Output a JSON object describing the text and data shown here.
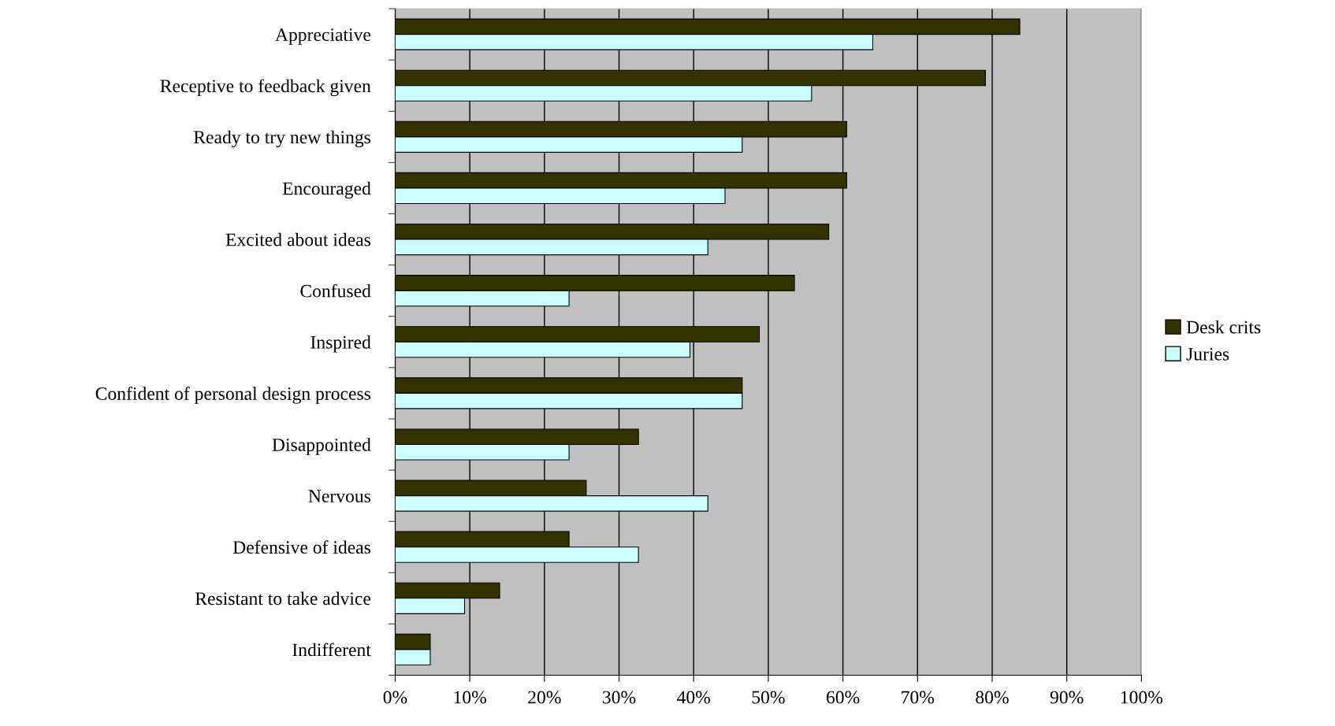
{
  "chart_data": {
    "type": "bar",
    "orientation": "horizontal",
    "categories": [
      "Appreciative",
      "Receptive to feedback given",
      "Ready to try new things",
      "Encouraged",
      "Excited about ideas",
      "Confused",
      "Inspired",
      "Confident of personal design process",
      "Disappointed",
      "Nervous",
      "Defensive of ideas",
      "Resistant to take advice",
      "Indifferent"
    ],
    "series": [
      {
        "name": "Desk crits",
        "color": "#333300",
        "values": [
          83.7,
          79.1,
          60.5,
          60.5,
          58.1,
          53.5,
          48.8,
          46.5,
          32.6,
          25.6,
          23.3,
          14.0,
          4.7
        ]
      },
      {
        "name": "Juries",
        "color": "#ccffff",
        "values": [
          64.0,
          55.8,
          46.5,
          44.2,
          41.9,
          23.3,
          39.5,
          46.5,
          23.3,
          41.9,
          32.6,
          9.3,
          4.7
        ]
      }
    ],
    "xlim": [
      0,
      100
    ],
    "xticks": [
      {
        "value": 0,
        "label": "0%"
      },
      {
        "value": 10,
        "label": "10%"
      },
      {
        "value": 20,
        "label": "20%"
      },
      {
        "value": 30,
        "label": "30%"
      },
      {
        "value": 40,
        "label": "40%"
      },
      {
        "value": 50,
        "label": "50%"
      },
      {
        "value": 60,
        "label": "60%"
      },
      {
        "value": 70,
        "label": "70%"
      },
      {
        "value": 80,
        "label": "80%"
      },
      {
        "value": 90,
        "label": "90%"
      },
      {
        "value": 100,
        "label": "100%"
      }
    ],
    "grid": "x",
    "legend": "right"
  }
}
